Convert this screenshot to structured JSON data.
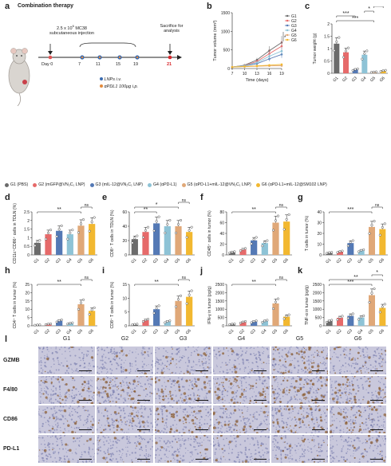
{
  "panels": {
    "a": "a",
    "b": "b",
    "c": "c",
    "d": "d",
    "e": "e",
    "f": "f",
    "g": "g",
    "h": "h",
    "i": "i",
    "j": "j",
    "k": "k",
    "l": "l"
  },
  "schematic": {
    "title": "Combination therapy",
    "injection_line1": "2.5 x 10",
    "injection_exp": "6",
    "injection_line1b": " MC38",
    "injection_line2": "subcutaneous injection",
    "day0": "Day 0",
    "days": [
      "7",
      "11",
      "15",
      "19",
      "21"
    ],
    "sacrifice": "Sacrifice for",
    "sacrifice2": "analysis",
    "lnps": "LNPs i.v.",
    "apdl1": "αPDL1 100μg i.p."
  },
  "colors": {
    "G1": "#6b6b6b",
    "G2": "#e66a6a",
    "G3": "#5479b5",
    "G4": "#8ec3d6",
    "G5": "#e0a878",
    "G6": "#f2b830",
    "sig": "#222222",
    "lnp": "#3a6bb0",
    "apdl1": "#e38a3c",
    "day21": "#d8262b"
  },
  "legend": [
    {
      "key": "G1",
      "label": "G1 (PBS)"
    },
    {
      "key": "G2",
      "label": "G2 (mGFP@VN₂C₁ LNP)"
    },
    {
      "key": "G3",
      "label": "G3 (mIL-12@VN₂C₁ LNP)"
    },
    {
      "key": "G4",
      "label": "G4 (αPD-L1)"
    },
    {
      "key": "G5",
      "label": "G5 (αPD-L1+mIL-12@VN₂C₁ LNP)"
    },
    {
      "key": "G6",
      "label": "G6 (αPD-L1+mIL-12@SM102 LNP)"
    }
  ],
  "ihc": {
    "columns": [
      "G1",
      "G2",
      "G3",
      "G4",
      "G5",
      "G6"
    ],
    "rows": [
      "GZMB",
      "F4/80",
      "CD86",
      "PD-L1"
    ]
  },
  "chart_data": [
    {
      "id": "b",
      "type": "line",
      "ylabel": "Tumor volume (mm³)",
      "xlabel": "Time (days)",
      "x": [
        7,
        10,
        13,
        16,
        19
      ],
      "ylim": [
        0,
        1500
      ],
      "yticks": [
        0,
        500,
        1000,
        1500
      ],
      "xticks": [
        7,
        10,
        13,
        16,
        19
      ],
      "series": [
        {
          "name": "G1",
          "values": [
            40,
            90,
            230,
            480,
            700
          ]
        },
        {
          "name": "G2",
          "values": [
            40,
            80,
            190,
            400,
            600
          ]
        },
        {
          "name": "G3",
          "values": [
            40,
            70,
            130,
            260,
            380
          ]
        },
        {
          "name": "G4",
          "values": [
            40,
            75,
            160,
            330,
            470
          ]
        },
        {
          "name": "G5",
          "values": [
            40,
            50,
            60,
            70,
            75
          ]
        },
        {
          "name": "G6",
          "values": [
            40,
            55,
            70,
            90,
            110
          ]
        }
      ],
      "legend": [
        "G1",
        "G2",
        "G3",
        "G4",
        "G5",
        "G6"
      ],
      "annotations": [
        "*"
      ]
    },
    {
      "id": "c",
      "type": "bar",
      "ylabel": "Tumor weight (g)",
      "categories": [
        "G1",
        "G2",
        "G3",
        "G4",
        "G5",
        "G6"
      ],
      "values": [
        1.2,
        0.85,
        0.15,
        0.75,
        0.05,
        0.1
      ],
      "ylim": [
        0,
        2.0
      ],
      "yticks": [
        0,
        0.5,
        1.0,
        1.5,
        2.0
      ],
      "sig": [
        {
          "from": 0,
          "to": 4,
          "label": "***"
        },
        {
          "from": 0,
          "to": 2,
          "label": "***"
        },
        {
          "from": 3,
          "to": 4,
          "label": "*"
        },
        {
          "from": 4,
          "to": 5,
          "label": "ns"
        }
      ]
    },
    {
      "id": "d",
      "type": "bar",
      "ylabel": "CD11c⁺CD86⁺ cells in TDLN (%)",
      "categories": [
        "G1",
        "G2",
        "G3",
        "G4",
        "G5",
        "G6"
      ],
      "values": [
        0.7,
        1.2,
        1.4,
        1.2,
        1.7,
        1.8
      ],
      "ylim": [
        0,
        2.5
      ],
      "yticks": [
        0,
        0.5,
        1.0,
        1.5,
        2.0,
        2.5
      ],
      "sig": [
        {
          "from": 0,
          "to": 4,
          "label": "**"
        },
        {
          "from": 4,
          "to": 5,
          "label": "ns"
        }
      ]
    },
    {
      "id": "e",
      "type": "bar",
      "ylabel": "CD8⁺ T cells in TDLN (%)",
      "categories": [
        "G1",
        "G2",
        "G3",
        "G4",
        "G5",
        "G6"
      ],
      "values": [
        22,
        32,
        44,
        40,
        40,
        32
      ],
      "ylim": [
        0,
        60
      ],
      "yticks": [
        0,
        20,
        40,
        60
      ],
      "sig": [
        {
          "from": 0,
          "to": 2,
          "label": "**"
        },
        {
          "from": 0,
          "to": 4,
          "label": "*"
        },
        {
          "from": 4,
          "to": 5,
          "label": "ns"
        }
      ]
    },
    {
      "id": "f",
      "type": "bar",
      "ylabel": "CD45⁺ cells in tumor (%)",
      "categories": [
        "G1",
        "G2",
        "G3",
        "G4",
        "G5",
        "G6"
      ],
      "values": [
        5,
        10,
        27,
        22,
        60,
        62
      ],
      "ylim": [
        0,
        80
      ],
      "yticks": [
        0,
        20,
        40,
        60,
        80
      ],
      "sig": [
        {
          "from": 0,
          "to": 4,
          "label": "**"
        },
        {
          "from": 4,
          "to": 5,
          "label": "ns"
        }
      ]
    },
    {
      "id": "g",
      "type": "bar",
      "ylabel": "T cells in tumor (%)",
      "categories": [
        "G1",
        "G2",
        "G3",
        "G4",
        "G5",
        "G6"
      ],
      "values": [
        2,
        3,
        11,
        4,
        26,
        24
      ],
      "ylim": [
        0,
        40
      ],
      "yticks": [
        0,
        10,
        20,
        30,
        40
      ],
      "sig": [
        {
          "from": 0,
          "to": 4,
          "label": "***"
        },
        {
          "from": 4,
          "to": 5,
          "label": "ns"
        }
      ]
    },
    {
      "id": "h",
      "type": "bar",
      "ylabel": "CD4⁺ T cells in tumor (%)",
      "categories": [
        "G1",
        "G2",
        "G3",
        "G4",
        "G5",
        "G6"
      ],
      "values": [
        0.5,
        1,
        3,
        1.5,
        13,
        9
      ],
      "ylim": [
        0,
        25
      ],
      "yticks": [
        0,
        5,
        10,
        15,
        20,
        25
      ],
      "sig": [
        {
          "from": 0,
          "to": 4,
          "label": "**"
        },
        {
          "from": 4,
          "to": 5,
          "label": "ns"
        }
      ]
    },
    {
      "id": "i",
      "type": "bar",
      "ylabel": "CD8⁺ T cells in tumor (%)",
      "categories": [
        "G1",
        "G2",
        "G3",
        "G4",
        "G5",
        "G6"
      ],
      "values": [
        0.5,
        2,
        6,
        1.5,
        9,
        10.5
      ],
      "ylim": [
        0,
        15
      ],
      "yticks": [
        0,
        5,
        10,
        15
      ],
      "sig": [
        {
          "from": 0,
          "to": 4,
          "label": "**"
        },
        {
          "from": 4,
          "to": 5,
          "label": "ns"
        }
      ]
    },
    {
      "id": "j",
      "type": "bar",
      "ylabel": "IFN-γ in tumor (pg/g)",
      "categories": [
        "G1",
        "G2",
        "G3",
        "G4",
        "G5",
        "G6"
      ],
      "values": [
        100,
        220,
        250,
        280,
        1350,
        550
      ],
      "ylim": [
        0,
        2500
      ],
      "yticks": [
        0,
        500,
        1000,
        1500,
        2000,
        2500
      ],
      "sig": [
        {
          "from": 0,
          "to": 4,
          "label": "**"
        },
        {
          "from": 4,
          "to": 5,
          "label": "ns"
        }
      ]
    },
    {
      "id": "k",
      "type": "bar",
      "ylabel": "TNF-α in tumor (pg/g)",
      "categories": [
        "G1",
        "G2",
        "G3",
        "G4",
        "G5",
        "G6"
      ],
      "values": [
        280,
        480,
        600,
        500,
        1850,
        1080
      ],
      "ylim": [
        0,
        2500
      ],
      "yticks": [
        0,
        500,
        1000,
        1500,
        2000,
        2500
      ],
      "sig": [
        {
          "from": 0,
          "to": 4,
          "label": "***"
        },
        {
          "from": 0,
          "to": 5,
          "label": "**"
        },
        {
          "from": 4,
          "to": 5,
          "label": "*"
        }
      ]
    }
  ]
}
